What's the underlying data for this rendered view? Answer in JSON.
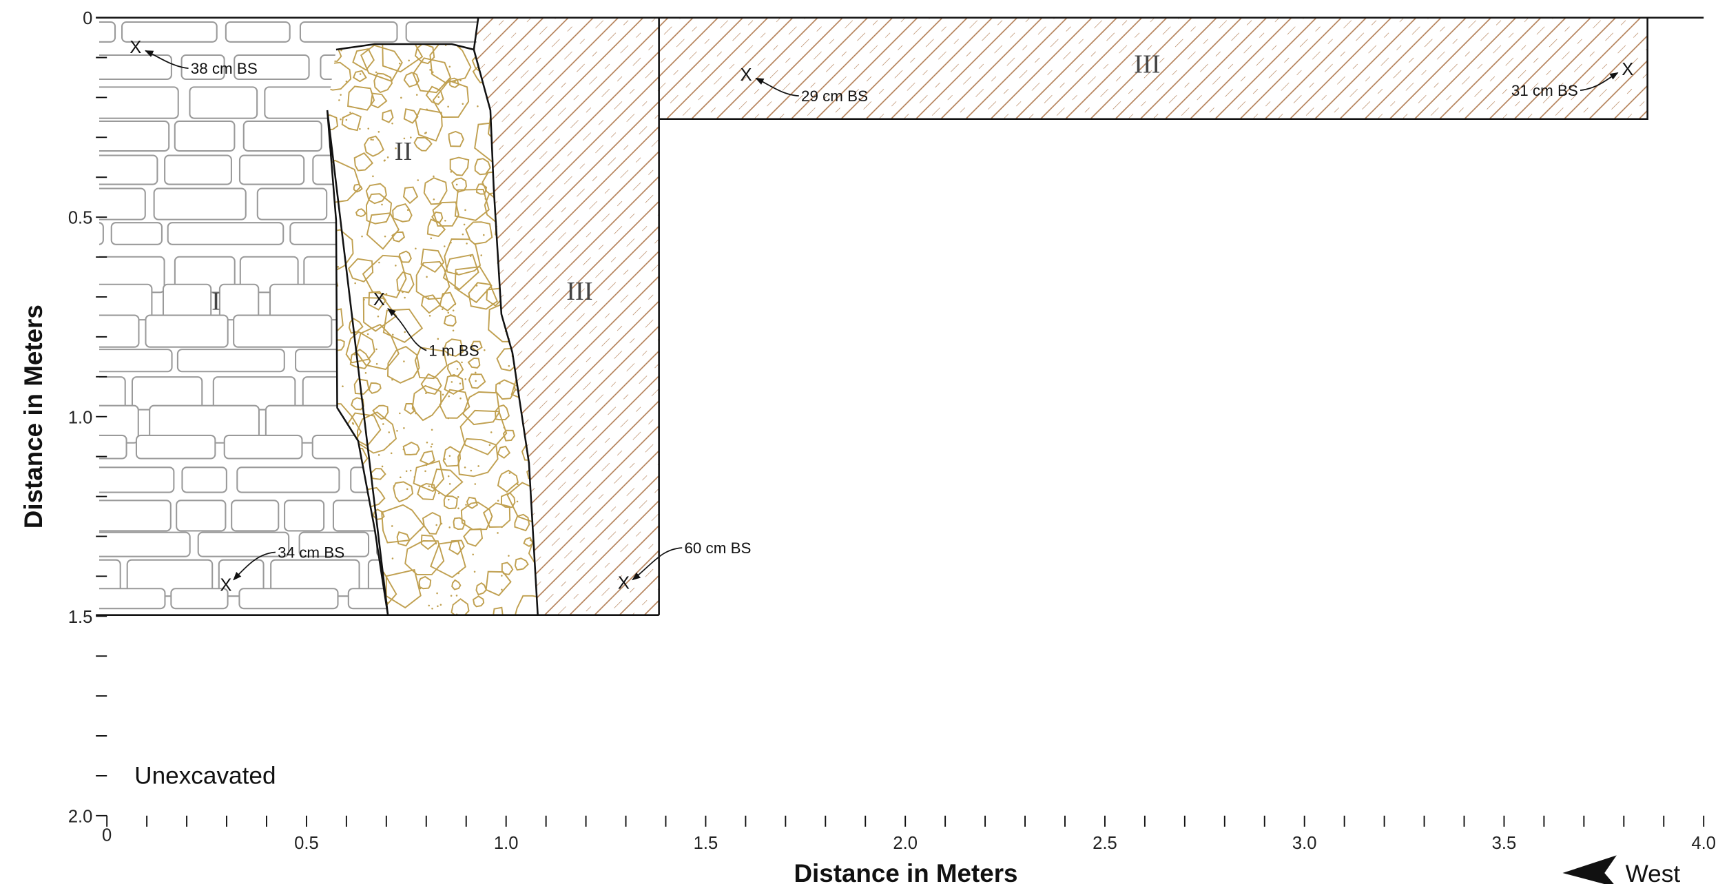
{
  "x_axis": {
    "title": "Distance in Meters",
    "ticks": [
      0,
      {
        "value": 0.5,
        "label": "0.5"
      },
      {
        "value": 1,
        "label": "1.0"
      },
      {
        "value": 1.5,
        "label": "1.5"
      },
      {
        "value": 2,
        "label": "2.0"
      },
      {
        "value": 2.5,
        "label": "2.5"
      },
      {
        "value": 3,
        "label": "3.0"
      },
      {
        "value": 3.5,
        "label": "3.5"
      },
      {
        "value": 4,
        "label": "4.0"
      }
    ]
  },
  "y_axis": {
    "title": "Distance in Meters",
    "ticks": [
      0,
      {
        "value": 0.5,
        "label": "0.5"
      },
      {
        "value": 1,
        "label": "1.0"
      },
      {
        "value": 1.5,
        "label": "1.5"
      },
      {
        "value": 2,
        "label": "2.0"
      }
    ]
  },
  "layers": [
    "I",
    "II",
    "III",
    "III"
  ],
  "annotations": [
    "38 cm BS",
    "29 cm BS",
    "31 cm BS",
    "1 m BS",
    "34 cm BS",
    "60 cm BS"
  ],
  "marker": "X",
  "unexcavated": "Unexcavated",
  "direction": "West"
}
